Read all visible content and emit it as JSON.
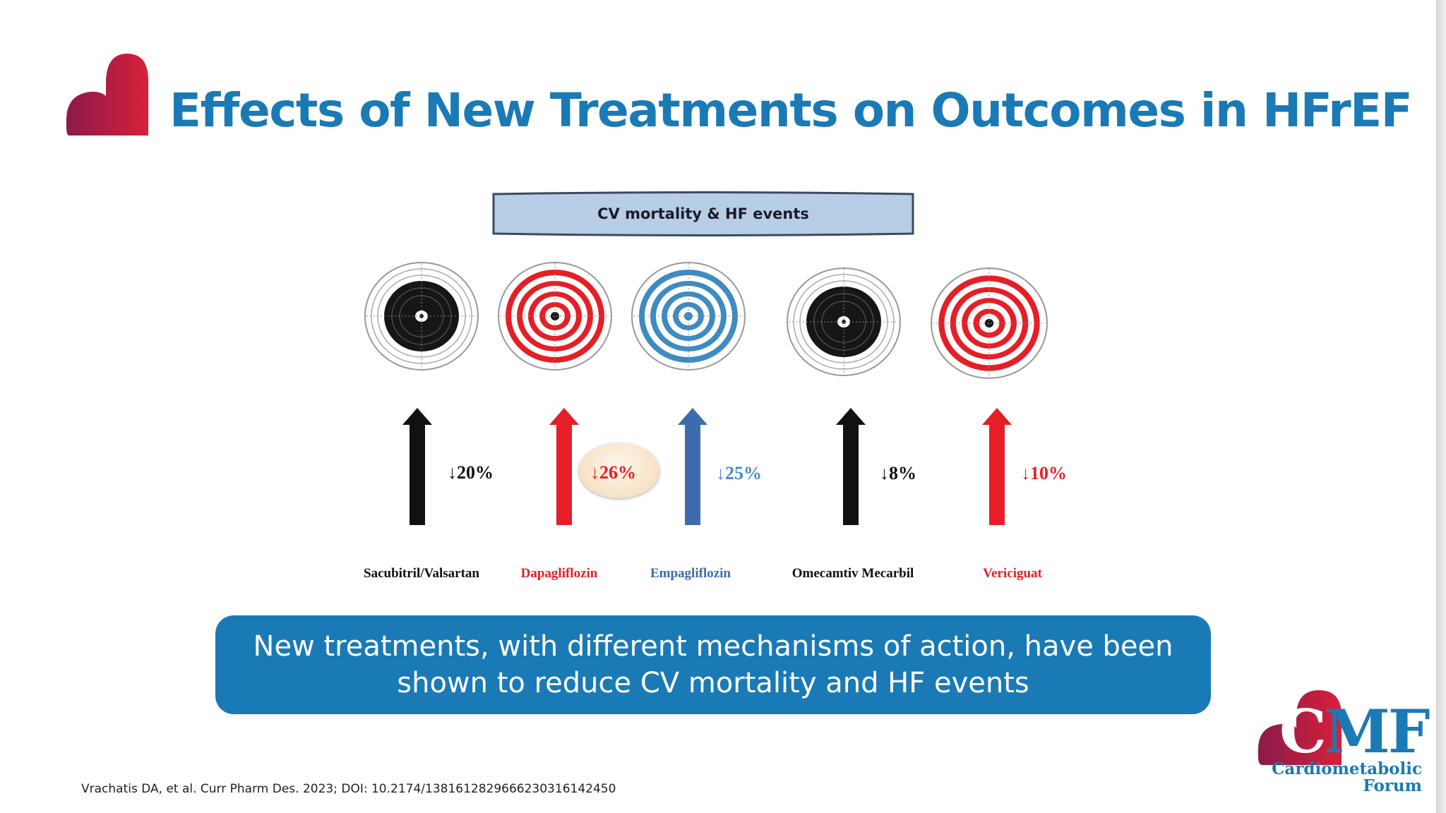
{
  "title": "Effects of New Treatments on Outcomes in HFrEF",
  "banner": "CV mortality & HF events",
  "colors": {
    "blue": "#1a7ab5",
    "red": "#e61e25",
    "black": "#111111",
    "steel": "#3c6cad",
    "maroon": "#8b1a4a"
  },
  "treatments": [
    {
      "name": "Sacubitril/Valsartan",
      "reduction": "↓20%",
      "theme": "black"
    },
    {
      "name": "Dapagliflozin",
      "reduction": "↓26%",
      "theme": "red"
    },
    {
      "name": "Empagliflozin",
      "reduction": "↓25%",
      "theme": "blue"
    },
    {
      "name": "Omecamtiv Mecarbil",
      "reduction": "↓8%",
      "theme": "black"
    },
    {
      "name": "Vericiguat",
      "reduction": "↓10%",
      "theme": "red"
    }
  ],
  "message": "New treatments, with different mechanisms of action, have been shown to reduce CV mortality and HF events",
  "citation": "Vrachatis DA, et al. Curr Pharm Des. 2023; DOI: 10.2174/1381612829666230316142450",
  "logo": {
    "letter_c": "C",
    "letters": "MF",
    "line1": "Cardiometabolic",
    "line2": "Forum"
  }
}
